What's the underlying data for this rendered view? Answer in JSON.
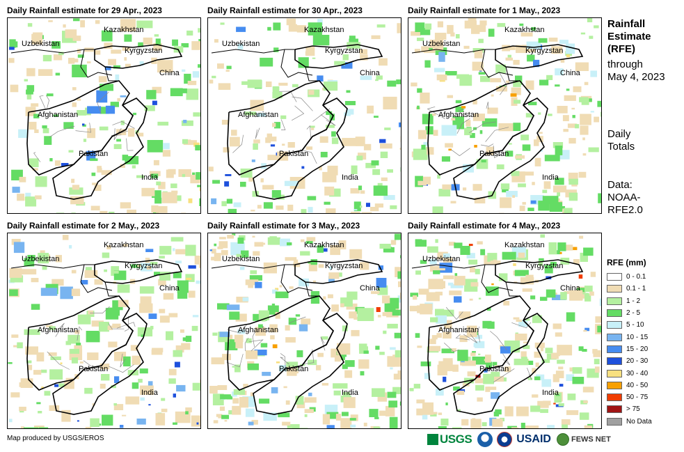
{
  "panels": [
    {
      "title": "Daily Rainfall estimate for 29 Apr., 2023",
      "intensity": 2
    },
    {
      "title": "Daily Rainfall estimate for 30 Apr., 2023",
      "intensity": 1
    },
    {
      "title": "Daily Rainfall estimate for 1 May., 2023",
      "intensity": 3
    },
    {
      "title": "Daily Rainfall estimate for 2 May., 2023",
      "intensity": 2
    },
    {
      "title": "Daily Rainfall estimate for 3 May., 2023",
      "intensity": 4
    },
    {
      "title": "Daily Rainfall estimate for 4 May., 2023",
      "intensity": 5
    }
  ],
  "map_labels": {
    "kazakhstan": "Kazakhstan",
    "uzbekistan": "Uzbekistan",
    "kyrgyzstan": "Kyrgyzstan",
    "china": "China",
    "afghanistan": "Afghanistan",
    "pakistan": "Pakistan",
    "india": "India"
  },
  "side": {
    "title_line1": "Rainfall",
    "title_line2": "Estimate",
    "title_line3": "(RFE)",
    "through_line1": "through",
    "through_line2": "May 4, 2023",
    "daily_line1": "Daily",
    "daily_line2": "Totals",
    "data_line1": "Data:",
    "data_line2": "NOAA-",
    "data_line3": "RFE2.0"
  },
  "legend": {
    "title": "RFE (mm)",
    "items": [
      {
        "label": "0 - 0.1",
        "color": "#ffffff"
      },
      {
        "label": "0.1 - 1",
        "color": "#f0dcb4"
      },
      {
        "label": "1 - 2",
        "color": "#b4f0a0"
      },
      {
        "label": "2 - 5",
        "color": "#64dc64"
      },
      {
        "label": "5 - 10",
        "color": "#c8f0f8"
      },
      {
        "label": "10 - 15",
        "color": "#78b4f0"
      },
      {
        "label": "15 - 20",
        "color": "#468cf0"
      },
      {
        "label": "20 - 30",
        "color": "#1e50dc"
      },
      {
        "label": "30 - 40",
        "color": "#f8e080"
      },
      {
        "label": "40 - 50",
        "color": "#f8a000"
      },
      {
        "label": "50 - 75",
        "color": "#f03c00"
      },
      {
        "label": "> 75",
        "color": "#a01414"
      },
      {
        "label": "No Data",
        "color": "#a0a0a0"
      }
    ]
  },
  "credit": "Map produced by USGS/EROS",
  "logos": {
    "usgs": "USGS",
    "usaid": "USAID",
    "fews": "FEWS NET"
  }
}
